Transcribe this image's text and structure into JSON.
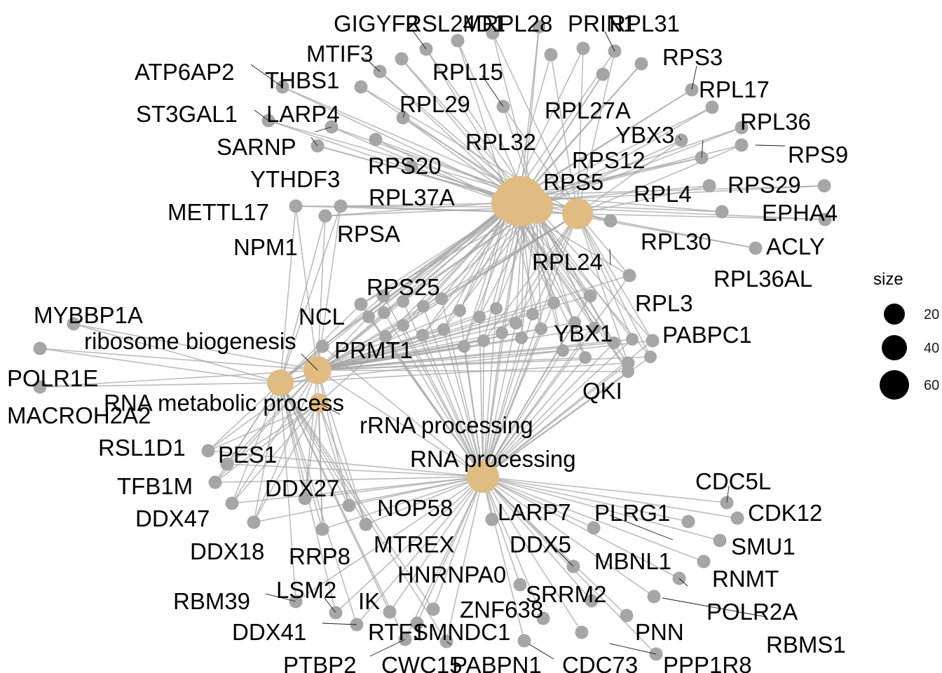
{
  "colors": {
    "edge": "#a6a6a6",
    "gene": "#a6a6a6",
    "category": "#e0bb82",
    "text": "#000000"
  },
  "legend": {
    "title": "size",
    "items": [
      {
        "label": "20",
        "value": 20
      },
      {
        "label": "40",
        "value": 40
      },
      {
        "label": "60",
        "value": 60
      }
    ]
  },
  "categories": [
    {
      "id": "ribosome-biogenesis",
      "label": "ribosome biogenesis",
      "size": 28
    },
    {
      "id": "rna-metabolic-process",
      "label": "RNA metabolic process",
      "size": 30
    },
    {
      "id": "rrna-processing",
      "label": "rRNA processing",
      "size": 22
    },
    {
      "id": "rna-processing",
      "label": "RNA processing",
      "size": 32
    },
    {
      "id": "translation-cluster-a",
      "label": "",
      "size": 65
    },
    {
      "id": "translation-cluster-b",
      "label": "",
      "size": 60
    },
    {
      "id": "translation-cluster-c",
      "label": "",
      "size": 58
    },
    {
      "id": "translation-cluster-d",
      "label": "",
      "size": 55
    },
    {
      "id": "translation-cluster-e",
      "label": "",
      "size": 50
    }
  ],
  "genes": [
    "GIGYF2",
    "RSL24D1",
    "MRPL28",
    "PRIN1",
    "RPL31",
    "MTIF3",
    "RPS3",
    "ATP6AP2",
    "THBS1",
    "RPL15",
    "RPL17",
    "ST3GAL1",
    "LARP4",
    "RPL29",
    "RPL27A",
    "RPL36",
    "SARNP",
    "RPL32",
    "YBX3",
    "RPS9",
    "YTHDF3",
    "RPS20",
    "RPS12",
    "RPS5",
    "RPS29",
    "RPL37A",
    "RPL4",
    "METTL17",
    "EPHA4",
    "RPSA",
    "NPM1",
    "RPL30",
    "ACLY",
    "RPL24",
    "RPL36AL",
    "RPS25",
    "RPL3",
    "NCL",
    "YBX1",
    "PABPC1",
    "MYBBP1A",
    "PRMT1",
    "QKI",
    "POLR1E",
    "MACROH2A2",
    "PES1",
    "RSL1D1",
    "TFB1M",
    "DDX27",
    "CDC5L",
    "NOP58",
    "CDK12",
    "DDX47",
    "LARP7",
    "PLRG1",
    "DDX18",
    "RRP8",
    "MTREX",
    "DDX5",
    "SMU1",
    "MBNL1",
    "RNMT",
    "HNRNPA0",
    "RBM39",
    "LSM2",
    "SRRM2",
    "POLR2A",
    "IK",
    "ZNF638",
    "DDX41",
    "RTF1",
    "SMNDC1",
    "PNN",
    "RBMS1",
    "PTBP2",
    "CWC15",
    "PABPN1",
    "CDC73",
    "PPP1R8"
  ]
}
